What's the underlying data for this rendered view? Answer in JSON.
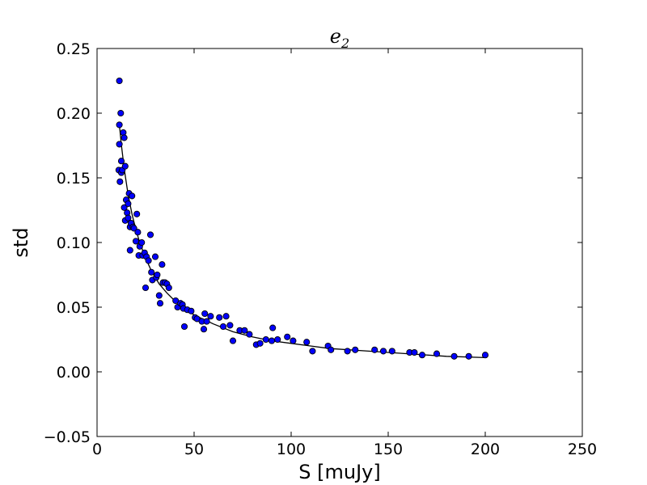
{
  "chart_data": {
    "type": "scatter",
    "title": "e",
    "title_subscript": "2",
    "xlabel": "S [muJy]",
    "ylabel": "std",
    "xlim": [
      0,
      250
    ],
    "ylim": [
      -0.05,
      0.25
    ],
    "xticks": [
      0,
      50,
      100,
      150,
      200,
      250
    ],
    "xtick_labels": [
      "0",
      "50",
      "100",
      "150",
      "200",
      "250"
    ],
    "yticks": [
      -0.05,
      0.0,
      0.05,
      0.1,
      0.15,
      0.2,
      0.25
    ],
    "ytick_labels": [
      "−0.05",
      "0.00",
      "0.05",
      "0.10",
      "0.15",
      "0.20",
      "0.25"
    ],
    "grid": false,
    "marker_color": "#0000ff",
    "line_color": "#000000",
    "series": [
      {
        "kind": "scatter",
        "points": [
          [
            11.5,
            0.225
          ],
          [
            11.5,
            0.191
          ],
          [
            11.5,
            0.176
          ],
          [
            11.2,
            0.156
          ],
          [
            11.8,
            0.147
          ],
          [
            12.2,
            0.2
          ],
          [
            12.5,
            0.163
          ],
          [
            12.5,
            0.154
          ],
          [
            13.0,
            0.156
          ],
          [
            13.5,
            0.185
          ],
          [
            14.0,
            0.181
          ],
          [
            14.0,
            0.127
          ],
          [
            14.5,
            0.159
          ],
          [
            14.5,
            0.117
          ],
          [
            15.0,
            0.133
          ],
          [
            15.5,
            0.123
          ],
          [
            16.0,
            0.13
          ],
          [
            16.0,
            0.119
          ],
          [
            16.5,
            0.138
          ],
          [
            17.0,
            0.112
          ],
          [
            17.0,
            0.094
          ],
          [
            17.5,
            0.115
          ],
          [
            18.0,
            0.136
          ],
          [
            18.5,
            0.112
          ],
          [
            19.0,
            0.111
          ],
          [
            20.0,
            0.101
          ],
          [
            20.5,
            0.122
          ],
          [
            21.0,
            0.108
          ],
          [
            21.5,
            0.09
          ],
          [
            22.0,
            0.097
          ],
          [
            23.0,
            0.1
          ],
          [
            23.5,
            0.09
          ],
          [
            24.5,
            0.092
          ],
          [
            25.0,
            0.065
          ],
          [
            25.5,
            0.089
          ],
          [
            26.5,
            0.086
          ],
          [
            27.5,
            0.106
          ],
          [
            28.0,
            0.077
          ],
          [
            28.5,
            0.071
          ],
          [
            30.0,
            0.089
          ],
          [
            30.5,
            0.073
          ],
          [
            31.0,
            0.075
          ],
          [
            32.0,
            0.059
          ],
          [
            32.5,
            0.053
          ],
          [
            33.5,
            0.083
          ],
          [
            34.0,
            0.069
          ],
          [
            35.0,
            0.069
          ],
          [
            36.0,
            0.068
          ],
          [
            37.0,
            0.065
          ],
          [
            40.5,
            0.055
          ],
          [
            41.5,
            0.05
          ],
          [
            43.0,
            0.053
          ],
          [
            44.0,
            0.052
          ],
          [
            44.5,
            0.049
          ],
          [
            45.0,
            0.035
          ],
          [
            46.5,
            0.048
          ],
          [
            48.5,
            0.047
          ],
          [
            50.5,
            0.042
          ],
          [
            51.5,
            0.041
          ],
          [
            54.0,
            0.039
          ],
          [
            55.0,
            0.033
          ],
          [
            55.5,
            0.045
          ],
          [
            56.5,
            0.039
          ],
          [
            58.5,
            0.043
          ],
          [
            63.0,
            0.042
          ],
          [
            65.0,
            0.035
          ],
          [
            66.5,
            0.043
          ],
          [
            68.5,
            0.036
          ],
          [
            70.0,
            0.024
          ],
          [
            73.5,
            0.032
          ],
          [
            76.0,
            0.032
          ],
          [
            78.5,
            0.029
          ],
          [
            82.0,
            0.021
          ],
          [
            84.0,
            0.022
          ],
          [
            87.0,
            0.025
          ],
          [
            90.0,
            0.024
          ],
          [
            90.5,
            0.034
          ],
          [
            93.0,
            0.025
          ],
          [
            98.0,
            0.027
          ],
          [
            101.0,
            0.024
          ],
          [
            108.0,
            0.023
          ],
          [
            111.0,
            0.016
          ],
          [
            119.0,
            0.02
          ],
          [
            120.5,
            0.017
          ],
          [
            129.0,
            0.016
          ],
          [
            133.0,
            0.017
          ],
          [
            143.0,
            0.017
          ],
          [
            147.5,
            0.016
          ],
          [
            152.0,
            0.016
          ],
          [
            161.0,
            0.015
          ],
          [
            163.5,
            0.015
          ],
          [
            167.5,
            0.013
          ],
          [
            175.0,
            0.014
          ],
          [
            184.0,
            0.012
          ],
          [
            191.5,
            0.012
          ],
          [
            200.0,
            0.013
          ]
        ]
      },
      {
        "kind": "line",
        "points": [
          [
            11.5,
            0.191
          ],
          [
            12.5,
            0.176
          ],
          [
            14,
            0.157
          ],
          [
            16,
            0.137
          ],
          [
            18,
            0.122
          ],
          [
            20,
            0.11
          ],
          [
            22,
            0.1
          ],
          [
            25,
            0.088
          ],
          [
            28,
            0.078
          ],
          [
            32,
            0.068
          ],
          [
            36,
            0.061
          ],
          [
            40,
            0.055
          ],
          [
            45,
            0.049
          ],
          [
            50,
            0.044
          ],
          [
            60,
            0.037
          ],
          [
            70,
            0.031
          ],
          [
            80,
            0.027
          ],
          [
            90,
            0.024
          ],
          [
            100,
            0.022
          ],
          [
            120,
            0.018
          ],
          [
            140,
            0.016
          ],
          [
            160,
            0.014
          ],
          [
            180,
            0.012
          ],
          [
            200,
            0.011
          ]
        ]
      }
    ]
  }
}
